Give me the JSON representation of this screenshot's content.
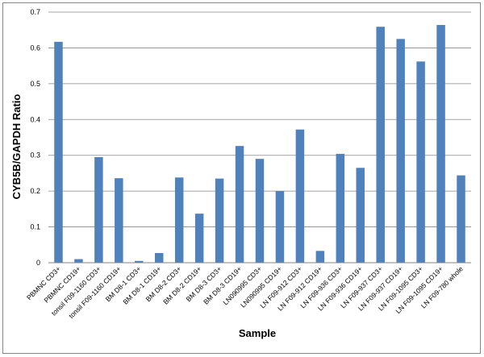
{
  "chart_data": {
    "type": "bar",
    "title": "",
    "xlabel": "Sample",
    "ylabel": "CYB5B/GAPDH Ratio",
    "ylim": [
      0,
      0.7
    ],
    "yticks": [
      "0",
      "0.1",
      "0.2",
      "0.3",
      "0.4",
      "0.5",
      "0.6",
      "0.7"
    ],
    "grid": true,
    "legend": "none",
    "bar_color": "#4f81bd",
    "categories": [
      "PBMNC CD3+",
      "PBMNC CD19+",
      "tonsil F09-1160 CD3+",
      "tonsil F09-1160 CD19+",
      "BM D8-1 CD3+",
      "BM D8-1 CD19+",
      "BM D8-2 CD3+",
      "BM D8-2 CD19+",
      "BM D8-3 CD3+",
      "BM D8-3 CD19+",
      "LN090995 CD3+",
      "LN090995 CD19+",
      "LN F09-912 CD3+",
      "LN F09-912 CD19+",
      "LN F09-936 CD3+",
      "LN F09-936 CD19+",
      "LN F09-937 CD3+",
      "LN F09-937 CD19+",
      "LN F09-1095 CD3+",
      "LN F09-1095 CD19+",
      "LN F09-780 whole"
    ],
    "values": [
      0.617,
      0.01,
      0.295,
      0.236,
      0.005,
      0.027,
      0.238,
      0.137,
      0.235,
      0.326,
      0.29,
      0.2,
      0.372,
      0.033,
      0.304,
      0.265,
      0.659,
      0.625,
      0.562,
      0.664,
      0.244
    ]
  }
}
